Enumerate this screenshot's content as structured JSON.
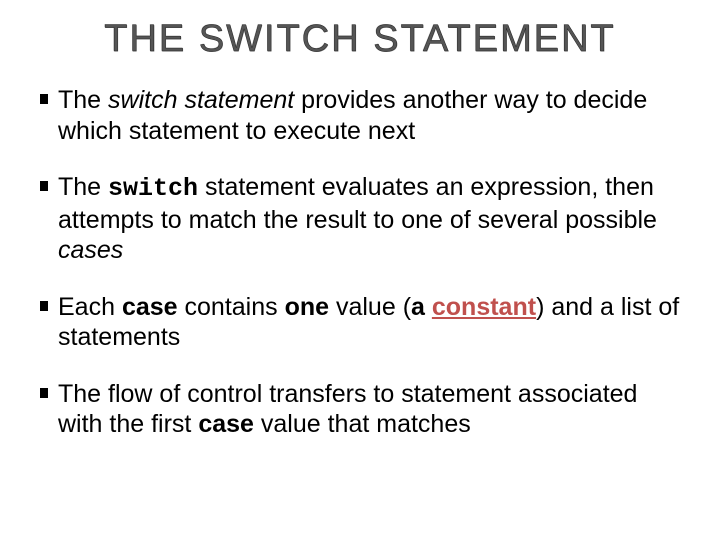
{
  "title": "THE SWITCH STATEMENT",
  "bullets": [
    {
      "pre": "The ",
      "em1": "switch",
      "em1_style": "italic",
      "mid1": " ",
      "em2": "statement",
      "em2_style": "italic",
      "mid2": " provides another way to decide which statement to execute next",
      "tail": ""
    },
    {
      "pre": "The ",
      "em1": "switch",
      "em1_style": "mono",
      "mid1": " statement evaluates an expression, then attempts to match the result to one of several possible ",
      "em2": "cases",
      "em2_style": "italic",
      "mid2": "",
      "tail": ""
    },
    {
      "pre": "Each ",
      "em1": "case",
      "em1_style": "bold",
      "mid1": " contains ",
      "em2": "one",
      "em2_style": "bold",
      "mid2": " value (",
      "em3": "a ",
      "em3_style": "bold",
      "em4": "constant",
      "em4_style": "constant",
      "tail": ") and a list of statements"
    },
    {
      "pre": "The flow of control transfers to statement associated with the first ",
      "em1": "case",
      "em1_style": "bold",
      "mid1": " value that matches",
      "em2": "",
      "em2_style": "",
      "mid2": "",
      "tail": ""
    }
  ],
  "colors": {
    "background": "#ffffff",
    "text": "#000000",
    "accent": "#c0504d",
    "title": "#555555"
  },
  "fontsizes": {
    "title": 38,
    "body": 25
  }
}
